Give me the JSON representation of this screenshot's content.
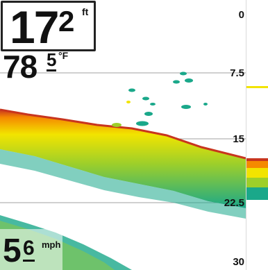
{
  "readouts": {
    "depth": {
      "main": "17",
      "superscript": "2",
      "unit": "ft"
    },
    "water_temp": {
      "main": "78",
      "superscript": "5",
      "unit": "°F"
    },
    "speed": {
      "main": "5",
      "superscript": "6",
      "unit": "mph"
    }
  },
  "depth_scale": {
    "labels": [
      "0",
      "7.5",
      "15",
      "22.5",
      "30"
    ],
    "max": 30
  },
  "colors": {
    "background": "#ffffff",
    "weak_return": "#1aa88a",
    "medium_return": "#f2e400",
    "strong_return": "#f58a00",
    "bottom_edge": "#c8351e"
  }
}
